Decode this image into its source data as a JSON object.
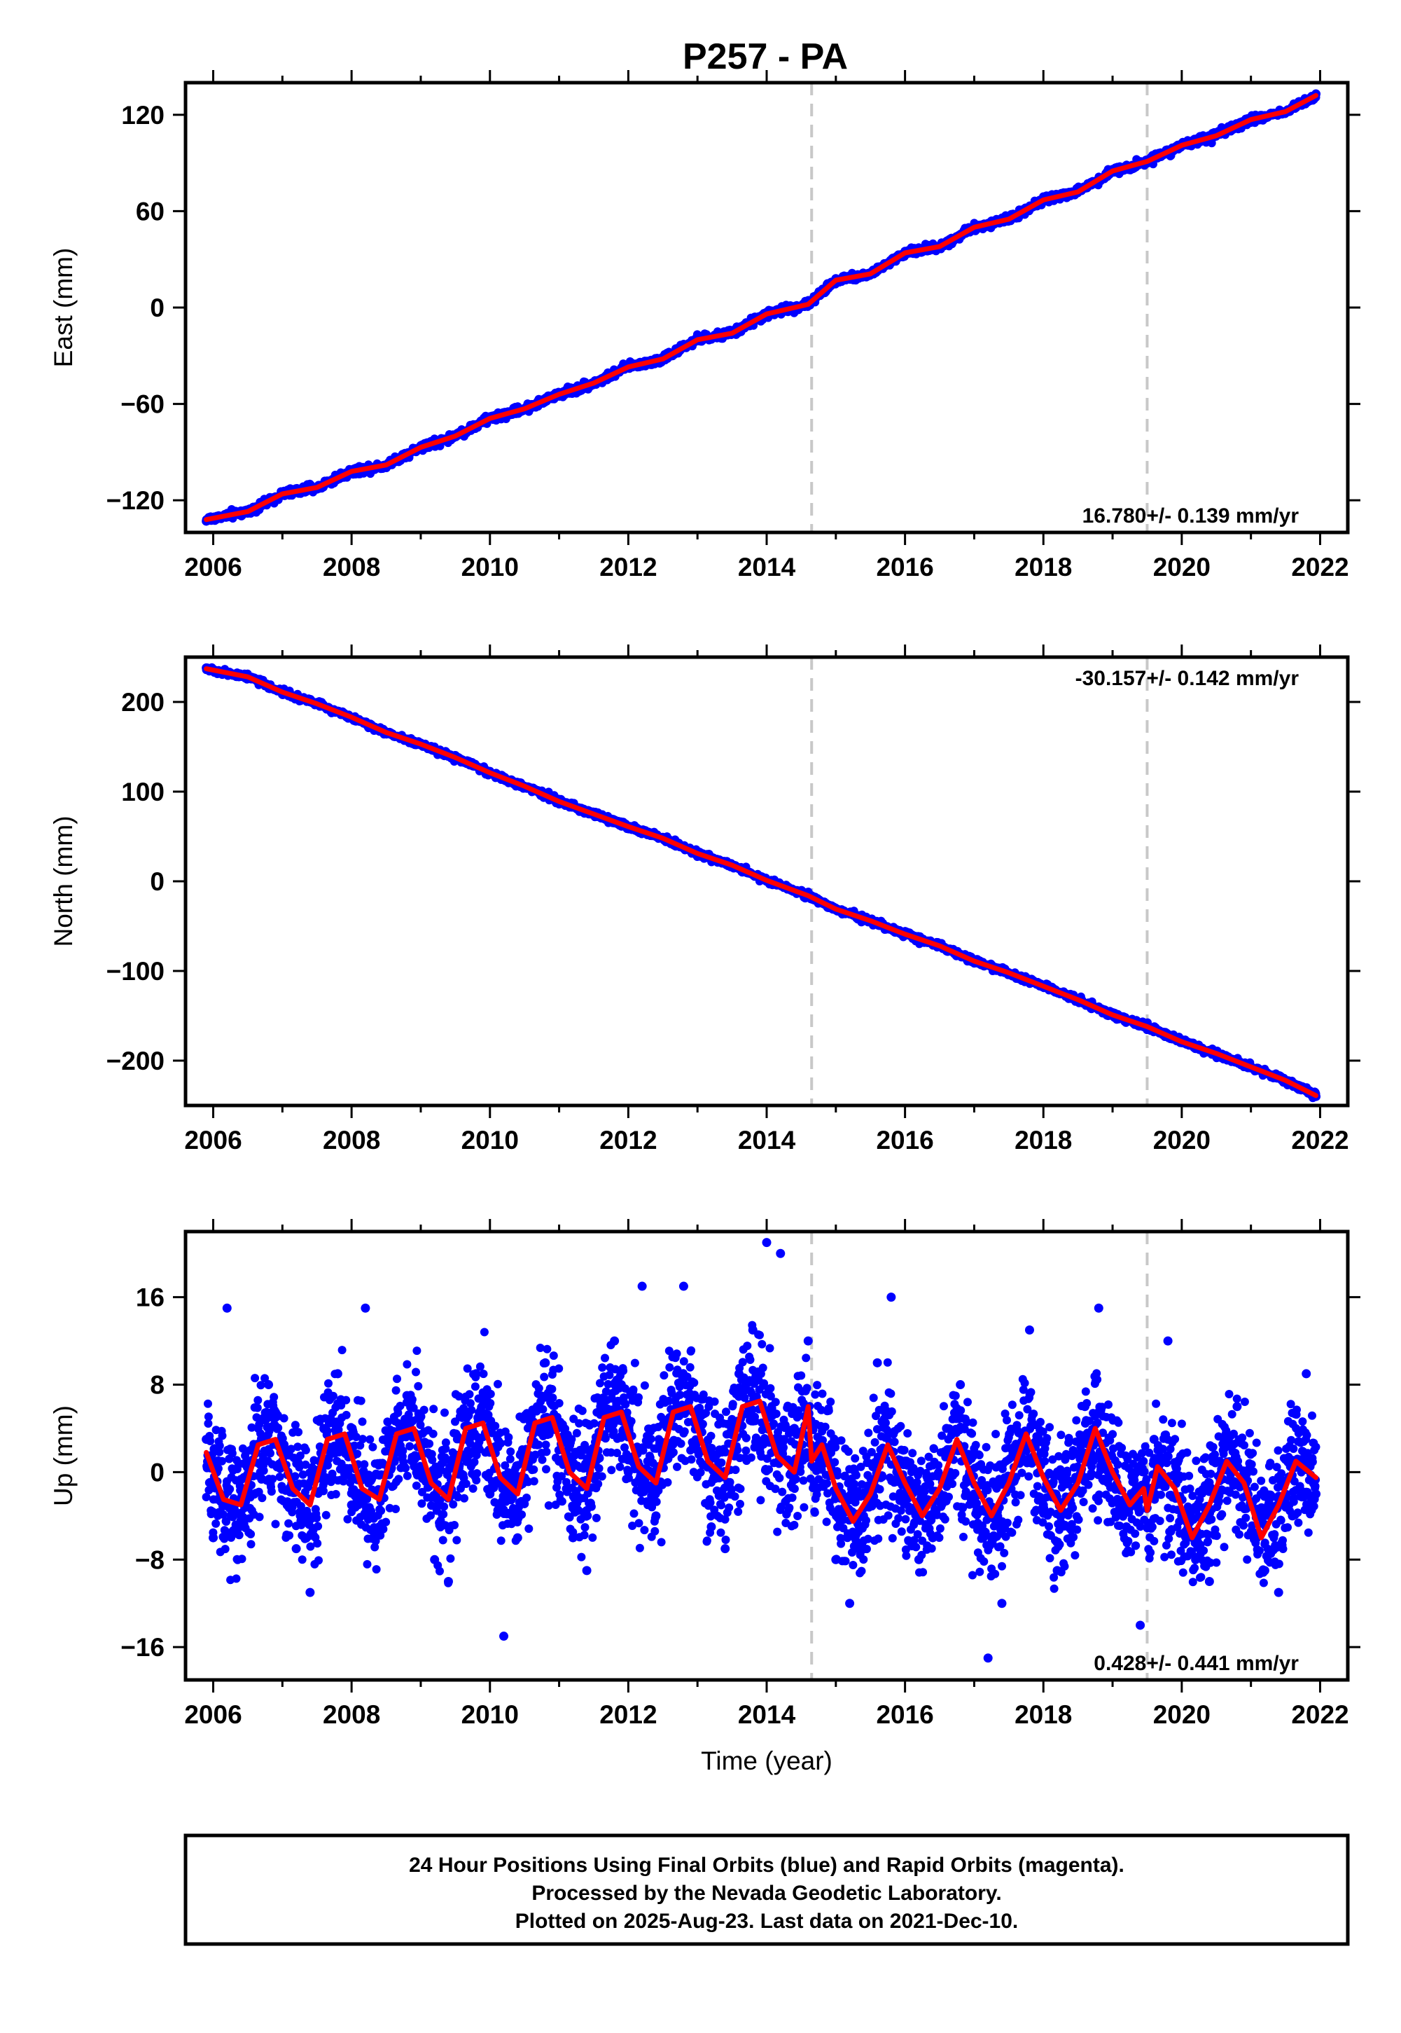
{
  "title": "P257 - PA",
  "footer": {
    "line1": "24 Hour Positions Using Final Orbits (blue) and Rapid Orbits (magenta).",
    "line2": "Processed by the Nevada Geodetic Laboratory.",
    "line3": "Plotted on 2025-Aug-23. Last data on 2021-Dec-10."
  },
  "colors": {
    "data_points": "#0000ff",
    "model_fit": "#ff0000",
    "event_lines": "#c8c8c8",
    "frame": "#000000"
  },
  "event_years": [
    2014.65,
    2019.5
  ],
  "data_span": [
    2005.9,
    2021.94
  ],
  "chart_data": [
    {
      "type": "scatter",
      "panel": "east",
      "ylabel": "East (mm)",
      "xlabel": "",
      "xlim": [
        2005.6,
        2022.4
      ],
      "ylim": [
        -140,
        140
      ],
      "xticks": [
        2006,
        2008,
        2010,
        2012,
        2014,
        2016,
        2018,
        2020,
        2022
      ],
      "yticks": [
        -120,
        -60,
        0,
        60,
        120
      ],
      "ytick_labels": [
        "−120",
        "−60",
        "0",
        "60",
        "120"
      ],
      "rate_label": "16.780+/- 0.139 mm/yr",
      "rate_position": "bottom-right",
      "series": [
        {
          "style": "points",
          "color": "#0000ff",
          "x": [
            2005.9,
            2006.5,
            2007.0,
            2007.5,
            2008.0,
            2008.5,
            2009.0,
            2009.5,
            2010.0,
            2010.5,
            2011.0,
            2011.5,
            2012.0,
            2012.5,
            2013.0,
            2013.5,
            2014.0,
            2014.6,
            2015.0,
            2015.5,
            2016.0,
            2016.5,
            2017.0,
            2017.5,
            2018.0,
            2018.5,
            2019.0,
            2019.5,
            2020.0,
            2020.5,
            2021.0,
            2021.5,
            2021.94
          ],
          "y": [
            -133,
            -128,
            -115,
            -113,
            -101,
            -99,
            -86,
            -80,
            -68,
            -63,
            -53,
            -47,
            -36,
            -32,
            -19,
            -16,
            -3,
            2,
            18,
            21,
            35,
            38,
            51,
            55,
            68,
            72,
            86,
            91,
            102,
            107,
            118,
            122,
            133
          ]
        },
        {
          "style": "line",
          "color": "#ff0000",
          "x": [
            2005.9,
            2006.5,
            2007.0,
            2007.5,
            2008.0,
            2008.5,
            2009.0,
            2009.5,
            2010.0,
            2010.5,
            2011.0,
            2011.5,
            2012.0,
            2012.5,
            2013.0,
            2013.5,
            2014.0,
            2014.6,
            2015.0,
            2015.5,
            2016.0,
            2016.5,
            2017.0,
            2017.5,
            2018.0,
            2018.5,
            2019.0,
            2019.5,
            2020.0,
            2020.5,
            2021.0,
            2021.5,
            2021.94
          ],
          "y": [
            -132,
            -127,
            -116,
            -112,
            -102,
            -98,
            -87,
            -80,
            -69,
            -63,
            -54,
            -47,
            -37,
            -32,
            -20,
            -16,
            -4,
            2,
            17,
            21,
            34,
            38,
            50,
            55,
            67,
            72,
            85,
            91,
            101,
            107,
            117,
            122,
            132
          ]
        }
      ]
    },
    {
      "type": "scatter",
      "panel": "north",
      "ylabel": "North (mm)",
      "xlabel": "",
      "xlim": [
        2005.6,
        2022.4
      ],
      "ylim": [
        -250,
        250
      ],
      "xticks": [
        2006,
        2008,
        2010,
        2012,
        2014,
        2016,
        2018,
        2020,
        2022
      ],
      "yticks": [
        -200,
        -100,
        0,
        100,
        200
      ],
      "ytick_labels": [
        "−200",
        "−100",
        "0",
        "100",
        "200"
      ],
      "rate_label": "-30.157+/- 0.142 mm/yr",
      "rate_position": "top-right",
      "series": [
        {
          "style": "points",
          "color": "#0000ff",
          "x": [
            2005.9,
            2006.5,
            2007.0,
            2007.5,
            2008.0,
            2008.5,
            2009.0,
            2009.5,
            2010.0,
            2010.5,
            2011.0,
            2011.5,
            2012.0,
            2012.5,
            2013.0,
            2013.5,
            2014.0,
            2014.6,
            2015.0,
            2015.5,
            2016.0,
            2016.5,
            2017.0,
            2017.5,
            2018.0,
            2018.5,
            2019.0,
            2019.5,
            2020.0,
            2020.5,
            2021.0,
            2021.5,
            2021.94
          ],
          "y": [
            238,
            228,
            210,
            198,
            182,
            166,
            152,
            138,
            120,
            106,
            88,
            75,
            60,
            48,
            30,
            18,
            0,
            -16,
            -32,
            -44,
            -60,
            -72,
            -90,
            -102,
            -118,
            -132,
            -150,
            -162,
            -180,
            -192,
            -208,
            -222,
            -240
          ]
        },
        {
          "style": "line",
          "color": "#ff0000",
          "x": [
            2005.9,
            2006.5,
            2007.0,
            2007.5,
            2008.0,
            2008.5,
            2009.0,
            2009.5,
            2010.0,
            2010.5,
            2011.0,
            2011.5,
            2012.0,
            2012.5,
            2013.0,
            2013.5,
            2014.0,
            2014.6,
            2015.0,
            2015.5,
            2016.0,
            2016.5,
            2017.0,
            2017.5,
            2018.0,
            2018.5,
            2019.0,
            2019.5,
            2020.0,
            2020.5,
            2021.0,
            2021.5,
            2021.94
          ],
          "y": [
            237,
            228,
            211,
            198,
            183,
            166,
            153,
            138,
            121,
            106,
            89,
            75,
            61,
            48,
            31,
            18,
            1,
            -16,
            -31,
            -44,
            -59,
            -72,
            -89,
            -102,
            -117,
            -132,
            -149,
            -162,
            -179,
            -192,
            -207,
            -222,
            -239
          ]
        }
      ]
    },
    {
      "type": "scatter",
      "panel": "up",
      "ylabel": "Up (mm)",
      "xlabel": "Time (year)",
      "xlim": [
        2005.6,
        2022.4
      ],
      "ylim": [
        -19,
        22
      ],
      "xticks": [
        2006,
        2008,
        2010,
        2012,
        2014,
        2016,
        2018,
        2020,
        2022
      ],
      "yticks": [
        -16,
        -8,
        0,
        8,
        16
      ],
      "ytick_labels": [
        "−16",
        "−8",
        "0",
        "8",
        "16"
      ],
      "rate_label": "0.428+/- 0.441 mm/yr",
      "rate_position": "bottom-right",
      "series": [
        {
          "style": "points",
          "color": "#0000ff",
          "x": [
            2005.9,
            2006.0,
            2006.2,
            2006.4,
            2006.6,
            2006.8,
            2007.0,
            2007.2,
            2007.4,
            2007.6,
            2007.8,
            2008.0,
            2008.2,
            2008.4,
            2008.6,
            2008.8,
            2009.0,
            2009.2,
            2009.4,
            2009.6,
            2009.8,
            2010.0,
            2010.2,
            2010.4,
            2010.6,
            2010.8,
            2011.0,
            2011.2,
            2011.4,
            2011.6,
            2011.8,
            2012.0,
            2012.2,
            2012.4,
            2012.6,
            2012.8,
            2013.0,
            2013.2,
            2013.4,
            2013.6,
            2013.8,
            2014.0,
            2014.2,
            2014.4,
            2014.6,
            2014.8,
            2015.0,
            2015.2,
            2015.4,
            2015.6,
            2015.8,
            2016.0,
            2016.2,
            2016.4,
            2016.6,
            2016.8,
            2017.0,
            2017.2,
            2017.4,
            2017.6,
            2017.8,
            2018.0,
            2018.2,
            2018.4,
            2018.6,
            2018.8,
            2019.0,
            2019.2,
            2019.4,
            2019.6,
            2019.8,
            2020.0,
            2020.2,
            2020.4,
            2020.6,
            2020.8,
            2021.0,
            2021.2,
            2021.4,
            2021.6,
            2021.8,
            2021.94
          ],
          "y": [
            3,
            -6,
            15,
            -4,
            2,
            8,
            1,
            -7,
            -11,
            4,
            9,
            -3,
            15,
            -5,
            2,
            7,
            0,
            -8,
            -10,
            5,
            9,
            -2,
            -15,
            -6,
            3,
            10,
            1,
            -6,
            -9,
            6,
            12,
            0,
            17,
            -4,
            5,
            17,
            2,
            -5,
            -7,
            9,
            13,
            21,
            20,
            4,
            12,
            2,
            -8,
            -12,
            -4,
            10,
            16,
            1,
            -8,
            -6,
            4,
            8,
            -2,
            -17,
            -12,
            4,
            13,
            -3,
            -9,
            -6,
            6,
            15,
            0,
            -5,
            -14,
            3,
            12,
            -4,
            -8,
            -10,
            2,
            6,
            -3,
            -9,
            -11,
            -4,
            9,
            -2
          ]
        },
        {
          "style": "line",
          "color": "#ff0000",
          "x": [
            2005.9,
            2006.15,
            2006.4,
            2006.65,
            2006.9,
            2007.15,
            2007.4,
            2007.65,
            2007.9,
            2008.15,
            2008.4,
            2008.65,
            2008.9,
            2009.15,
            2009.4,
            2009.65,
            2009.9,
            2010.15,
            2010.4,
            2010.65,
            2010.9,
            2011.15,
            2011.4,
            2011.65,
            2011.9,
            2012.15,
            2012.4,
            2012.65,
            2012.9,
            2013.15,
            2013.4,
            2013.65,
            2013.9,
            2014.15,
            2014.4,
            2014.6,
            2014.65,
            2014.8,
            2015.0,
            2015.25,
            2015.5,
            2015.75,
            2016.0,
            2016.25,
            2016.5,
            2016.75,
            2017.0,
            2017.25,
            2017.5,
            2017.75,
            2018.0,
            2018.25,
            2018.5,
            2018.75,
            2019.0,
            2019.25,
            2019.45,
            2019.5,
            2019.65,
            2019.9,
            2020.15,
            2020.4,
            2020.65,
            2020.9,
            2021.15,
            2021.4,
            2021.65,
            2021.94
          ],
          "y": [
            1.8,
            -2.5,
            -3.0,
            2.5,
            3.0,
            -1.5,
            -3.0,
            3.0,
            3.5,
            -1.5,
            -2.5,
            3.5,
            4.0,
            -1.0,
            -2.5,
            4.0,
            4.5,
            -0.5,
            -2.0,
            4.5,
            5.0,
            0.0,
            -1.5,
            5.0,
            5.5,
            0.5,
            -1.0,
            5.5,
            6.0,
            1.0,
            -0.5,
            6.0,
            6.5,
            1.5,
            0.0,
            6.0,
            1.0,
            2.5,
            -1.5,
            -4.5,
            -2.0,
            2.5,
            -1.0,
            -4.0,
            -1.5,
            3.0,
            -1.0,
            -4.0,
            -1.0,
            3.5,
            -0.5,
            -3.5,
            -1.0,
            4.0,
            0.0,
            -3.0,
            -1.5,
            -3.5,
            0.5,
            -1.5,
            -6.0,
            -3.0,
            1.0,
            -1.0,
            -6.0,
            -3.0,
            1.0,
            -0.5
          ]
        }
      ]
    }
  ]
}
